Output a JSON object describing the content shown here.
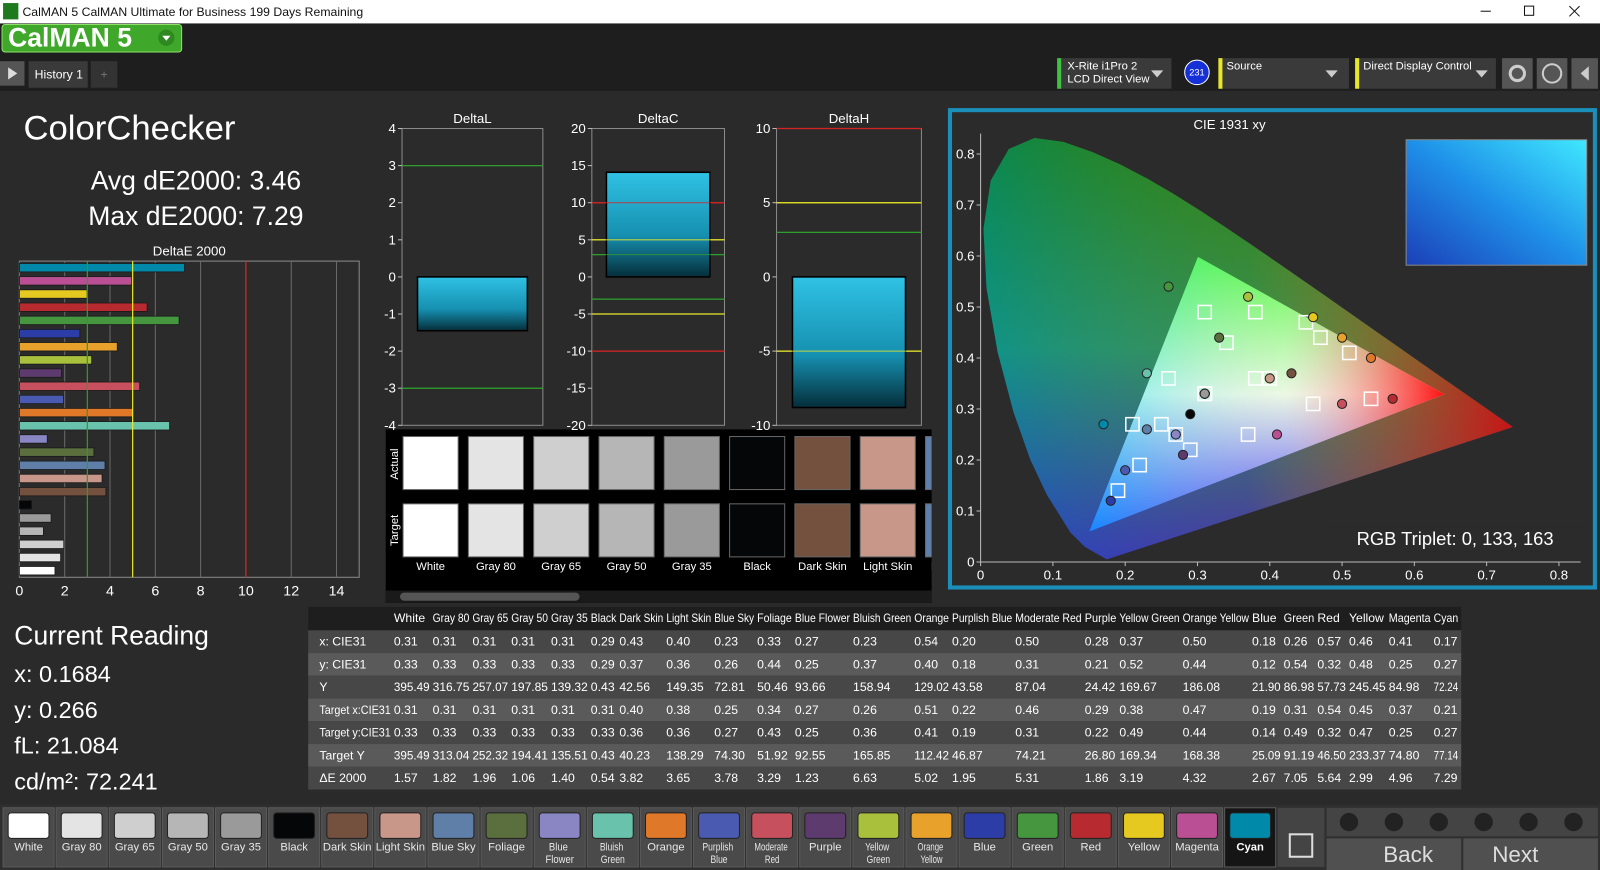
{
  "window": {
    "title": "CalMAN 5 CalMAN Ultimate for Business 199 Days Remaining",
    "logo": "CalMAN 5",
    "tab": "History 1"
  },
  "devices": {
    "meter": "X-Rite i1Pro 2",
    "meter_mode": "LCD Direct View",
    "badge": "231",
    "source": "Source",
    "display": "Direct Display Control"
  },
  "summary": {
    "title": "ColorChecker",
    "avg": "Avg dE2000: 3.46",
    "max": "Max dE2000: 7.29"
  },
  "reading": {
    "title": "Current Reading",
    "lines": [
      "x: 0.1684",
      "y: 0.266",
      "fL: 21.084",
      "cd/m²: 72.241"
    ]
  },
  "rgb_triplet": "RGB Triplet: 0, 133, 163",
  "swatch_labels": [
    "Actual",
    "Target"
  ],
  "patches": [
    {
      "name": "White",
      "color": "#ffffff"
    },
    {
      "name": "Gray 80",
      "color": "#e4e4e4"
    },
    {
      "name": "Gray 65",
      "color": "#cfcfcf"
    },
    {
      "name": "Gray 50",
      "color": "#b6b6b6"
    },
    {
      "name": "Gray 35",
      "color": "#9a9a9a"
    },
    {
      "name": "Black",
      "color": "#050608"
    },
    {
      "name": "Dark Skin",
      "color": "#74503f"
    },
    {
      "name": "Light Skin",
      "color": "#c9978a"
    },
    {
      "name": "Blue Sky",
      "color": "#5f7fa8"
    },
    {
      "name": "Foliage",
      "color": "#5b6f3e"
    },
    {
      "name": "Blue Flower",
      "color": "#8a86c4"
    },
    {
      "name": "Bluish Green",
      "color": "#68c2ac"
    },
    {
      "name": "Orange",
      "color": "#e0782a"
    },
    {
      "name": "Purplish Blue",
      "color": "#4a5ab0"
    },
    {
      "name": "Moderate Red",
      "color": "#c6505d"
    },
    {
      "name": "Purple",
      "color": "#5e3b6e"
    },
    {
      "name": "Yellow Green",
      "color": "#a8c03c"
    },
    {
      "name": "Orange Yellow",
      "color": "#e8a22c"
    },
    {
      "name": "Blue",
      "color": "#2d3da8"
    },
    {
      "name": "Green",
      "color": "#45963f"
    },
    {
      "name": "Red",
      "color": "#b72a30"
    },
    {
      "name": "Yellow",
      "color": "#e5c820"
    },
    {
      "name": "Magenta",
      "color": "#bb4f93"
    },
    {
      "name": "Cyan",
      "color": "#0089a8"
    }
  ],
  "chart_data": [
    {
      "type": "bar",
      "orientation": "horizontal",
      "title": "DeltaE 2000",
      "values": [
        1.57,
        1.82,
        1.96,
        1.06,
        1.4,
        0.54,
        3.82,
        3.65,
        3.78,
        3.29,
        1.23,
        6.63,
        5.02,
        1.95,
        5.31,
        1.86,
        3.19,
        4.32,
        2.67,
        7.05,
        5.64,
        2.99,
        4.96,
        7.29
      ],
      "xlim": [
        0,
        15
      ],
      "xticks": [
        0,
        2,
        4,
        6,
        8,
        10,
        12,
        14
      ],
      "grid": true,
      "ref_lines": [
        {
          "value": 3,
          "color": "#2f9d2f"
        },
        {
          "value": 5,
          "color": "#e8e82c"
        },
        {
          "value": 10,
          "color": "#d42424"
        }
      ]
    },
    {
      "type": "bar",
      "orientation": "vertical",
      "title": "DeltaL",
      "values": [
        -1.45
      ],
      "color": "#1a9fc0",
      "ylim": [
        -4,
        4
      ],
      "yticks": [
        -4,
        -3,
        -2,
        -1,
        0,
        1,
        2,
        3,
        4
      ],
      "ref_lines": [
        {
          "value": 3,
          "color": "#2f9d2f"
        },
        {
          "value": -3,
          "color": "#2f9d2f"
        }
      ]
    },
    {
      "type": "bar",
      "orientation": "vertical",
      "title": "DeltaC",
      "values": [
        14.1
      ],
      "color": "#1a9fc0",
      "ylim": [
        -20,
        20
      ],
      "yticks": [
        -20,
        -15,
        -10,
        -5,
        0,
        5,
        10,
        15,
        20
      ],
      "ref_lines": [
        {
          "value": 10,
          "color": "#d42424"
        },
        {
          "value": -10,
          "color": "#d42424"
        },
        {
          "value": 5,
          "color": "#e8e82c"
        },
        {
          "value": -5,
          "color": "#e8e82c"
        },
        {
          "value": 3,
          "color": "#2f9d2f"
        },
        {
          "value": -3,
          "color": "#2f9d2f"
        }
      ]
    },
    {
      "type": "bar",
      "orientation": "vertical",
      "title": "DeltaH",
      "values": [
        -8.8
      ],
      "color": "#1a9fc0",
      "ylim": [
        -10,
        10
      ],
      "yticks": [
        -10,
        -5,
        0,
        5,
        10
      ],
      "ref_lines": [
        {
          "value": 10,
          "color": "#d42424"
        },
        {
          "value": 5,
          "color": "#e8e82c"
        },
        {
          "value": -5,
          "color": "#e8e82c"
        },
        {
          "value": 3,
          "color": "#2f9d2f"
        }
      ]
    },
    {
      "type": "scatter",
      "title": "CIE 1931 xy",
      "xlim": [
        0,
        0.83
      ],
      "ylim": [
        0,
        0.84
      ],
      "xticks": [
        0,
        0.1,
        0.2,
        0.3,
        0.4,
        0.5,
        0.6,
        0.7,
        0.8
      ],
      "yticks": [
        0,
        0.1,
        0.2,
        0.3,
        0.4,
        0.5,
        0.6,
        0.7,
        0.8
      ],
      "actual": {
        "x": [
          0.31,
          0.31,
          0.31,
          0.31,
          0.31,
          0.29,
          0.43,
          0.4,
          0.23,
          0.33,
          0.27,
          0.23,
          0.54,
          0.2,
          0.5,
          0.28,
          0.37,
          0.5,
          0.18,
          0.26,
          0.57,
          0.46,
          0.41,
          0.17
        ],
        "y": [
          0.33,
          0.33,
          0.33,
          0.33,
          0.33,
          0.29,
          0.37,
          0.36,
          0.26,
          0.44,
          0.25,
          0.37,
          0.4,
          0.18,
          0.31,
          0.21,
          0.52,
          0.44,
          0.12,
          0.54,
          0.32,
          0.48,
          0.25,
          0.27
        ]
      },
      "target": {
        "x": [
          0.31,
          0.31,
          0.31,
          0.31,
          0.31,
          0.31,
          0.4,
          0.38,
          0.25,
          0.34,
          0.27,
          0.26,
          0.51,
          0.22,
          0.46,
          0.29,
          0.38,
          0.47,
          0.19,
          0.31,
          0.54,
          0.45,
          0.37,
          0.21
        ],
        "y": [
          0.33,
          0.33,
          0.33,
          0.33,
          0.33,
          0.33,
          0.36,
          0.36,
          0.27,
          0.43,
          0.25,
          0.36,
          0.41,
          0.19,
          0.31,
          0.22,
          0.49,
          0.44,
          0.14,
          0.49,
          0.32,
          0.47,
          0.25,
          0.27
        ]
      }
    }
  ],
  "table": {
    "row_labels": [
      "x: CIE31",
      "y: CIE31",
      "Y",
      "Target x:CIE31",
      "Target y:CIE31",
      "Target Y",
      "ΔE 2000"
    ],
    "rows": [
      [
        "0.31",
        "0.31",
        "0.31",
        "0.31",
        "0.31",
        "0.29",
        "0.43",
        "0.40",
        "0.23",
        "0.33",
        "0.27",
        "0.23",
        "0.54",
        "0.20",
        "0.50",
        "0.28",
        "0.37",
        "0.50",
        "0.18",
        "0.26",
        "0.57",
        "0.46",
        "0.41",
        "0.17"
      ],
      [
        "0.33",
        "0.33",
        "0.33",
        "0.33",
        "0.33",
        "0.29",
        "0.37",
        "0.36",
        "0.26",
        "0.44",
        "0.25",
        "0.37",
        "0.40",
        "0.18",
        "0.31",
        "0.21",
        "0.52",
        "0.44",
        "0.12",
        "0.54",
        "0.32",
        "0.48",
        "0.25",
        "0.27"
      ],
      [
        "395.49",
        "316.75",
        "257.07",
        "197.85",
        "139.32",
        "0.43",
        "42.56",
        "149.35",
        "72.81",
        "50.46",
        "93.66",
        "158.94",
        "129.02",
        "43.58",
        "87.04",
        "24.42",
        "169.67",
        "186.08",
        "21.90",
        "86.98",
        "57.73",
        "245.45",
        "84.98",
        "72.24"
      ],
      [
        "0.31",
        "0.31",
        "0.31",
        "0.31",
        "0.31",
        "0.31",
        "0.40",
        "0.38",
        "0.25",
        "0.34",
        "0.27",
        "0.26",
        "0.51",
        "0.22",
        "0.46",
        "0.29",
        "0.38",
        "0.47",
        "0.19",
        "0.31",
        "0.54",
        "0.45",
        "0.37",
        "0.21"
      ],
      [
        "0.33",
        "0.33",
        "0.33",
        "0.33",
        "0.33",
        "0.33",
        "0.36",
        "0.36",
        "0.27",
        "0.43",
        "0.25",
        "0.36",
        "0.41",
        "0.19",
        "0.31",
        "0.22",
        "0.49",
        "0.44",
        "0.14",
        "0.49",
        "0.32",
        "0.47",
        "0.25",
        "0.27"
      ],
      [
        "395.49",
        "313.04",
        "252.32",
        "194.41",
        "135.51",
        "0.43",
        "40.23",
        "138.29",
        "74.30",
        "51.92",
        "92.55",
        "165.85",
        "112.42",
        "46.87",
        "74.21",
        "26.80",
        "169.34",
        "168.38",
        "25.09",
        "91.19",
        "46.50",
        "233.37",
        "74.80",
        "77.14"
      ],
      [
        "1.57",
        "1.82",
        "1.96",
        "1.06",
        "1.40",
        "0.54",
        "3.82",
        "3.65",
        "3.78",
        "3.29",
        "1.23",
        "6.63",
        "5.02",
        "1.95",
        "5.31",
        "1.86",
        "3.19",
        "4.32",
        "2.67",
        "7.05",
        "5.64",
        "2.99",
        "4.96",
        "7.29"
      ]
    ]
  },
  "nav": {
    "back": "Back",
    "next": "Next"
  }
}
